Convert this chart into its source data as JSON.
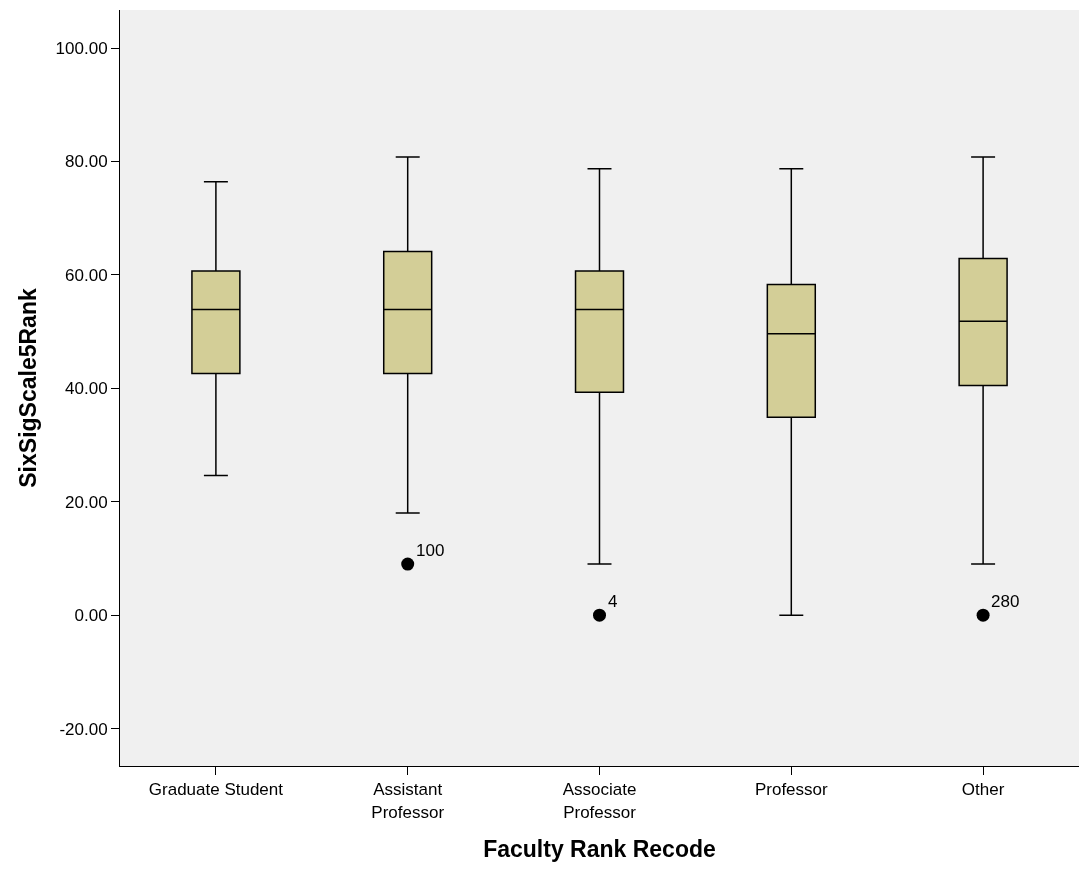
{
  "chart_data": {
    "type": "box",
    "xlabel": "Faculty Rank Recode",
    "ylabel": "SixSigScale5Rank",
    "categories": [
      "Graduate Student",
      "Assistant Professor",
      "Associate Professor",
      "Professor",
      "Other"
    ],
    "color": "#d3ce97",
    "boxes": [
      {
        "low": 24.6,
        "q1": 42.6,
        "median": 53.9,
        "q3": 60.7,
        "high": 76.4
      },
      {
        "low": 18.0,
        "q1": 42.6,
        "median": 53.9,
        "q3": 64.1,
        "high": 80.8
      },
      {
        "low": 9.0,
        "q1": 39.3,
        "median": 53.9,
        "q3": 60.7,
        "high": 78.7
      },
      {
        "low": 0,
        "q1": 34.9,
        "median": 49.6,
        "q3": 58.3,
        "high": 78.7
      },
      {
        "low": 9.0,
        "q1": 40.5,
        "median": 51.8,
        "q3": 62.9,
        "high": 80.8
      }
    ],
    "series": [
      {
        "type": "scatter",
        "color": "#000000",
        "x": [
          "Assistant Professor",
          "Associate Professor",
          "Other"
        ],
        "values": [
          9.0,
          0,
          0
        ]
      }
    ],
    "ylim": [
      -26.6,
      106.7
    ],
    "yticks": [
      {
        "value": -20,
        "label": "-20.00"
      },
      {
        "value": 0,
        "label": "0.00"
      },
      {
        "value": 20,
        "label": "20.00"
      },
      {
        "value": 40,
        "label": "40.00"
      },
      {
        "value": 60,
        "label": "60.00"
      },
      {
        "value": 80,
        "label": "80.00"
      },
      {
        "value": 100,
        "label": "100.00"
      }
    ],
    "annotations": [
      {
        "text": "100",
        "x": "Assistant Professor",
        "y": 9.0
      },
      {
        "text": "4",
        "x": "Associate Professor",
        "y": 0
      },
      {
        "text": "280",
        "x": "Other",
        "y": 0
      }
    ],
    "grid": false,
    "marker": "circle"
  }
}
